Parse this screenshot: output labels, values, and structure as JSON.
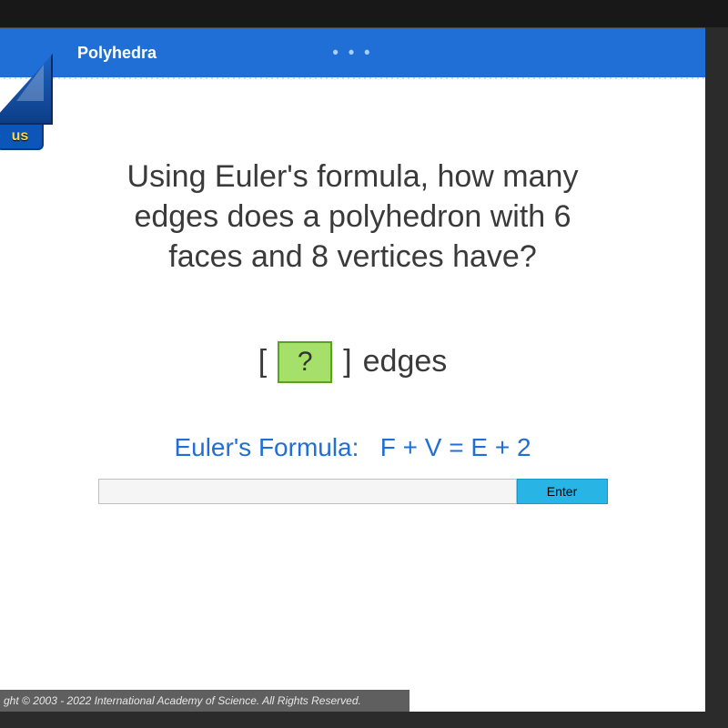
{
  "header": {
    "title": "Polyhedra",
    "dots": "• • •"
  },
  "logo": {
    "tab_text": "us"
  },
  "question": {
    "line1": "Using Euler's formula, how many",
    "line2": "edges does a polyhedron with 6",
    "line3": "faces and 8 vertices have?"
  },
  "answer": {
    "placeholder_symbol": "?",
    "unit_label": "edges",
    "open_bracket": "[",
    "close_bracket": "]"
  },
  "formula": {
    "label": "Euler's Formula:",
    "expression": "F + V = E + 2"
  },
  "input": {
    "value": "",
    "enter_label": "Enter"
  },
  "footer": {
    "text": "ght © 2003 - 2022 International Academy of Science.  All Rights Reserved."
  },
  "style": {
    "header_bg": "#1f6fd6",
    "answer_box_bg": "#a4e06a",
    "answer_box_border": "#5aa31e",
    "formula_color": "#1f6fd6",
    "enter_bg": "#29b4e6",
    "question_fontsize": 34,
    "formula_fontsize": 28
  }
}
